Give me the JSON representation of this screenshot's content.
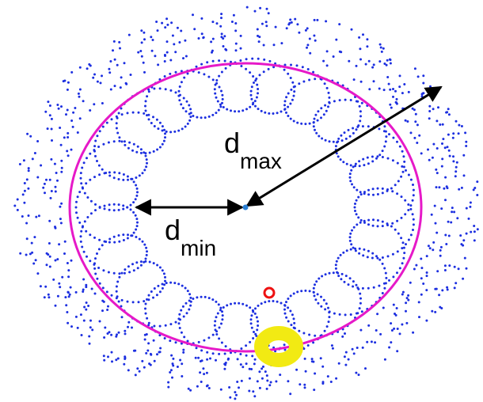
{
  "labels": [
    {
      "main": "d",
      "sub": "max"
    },
    {
      "main": "d",
      "sub": "min"
    }
  ]
}
